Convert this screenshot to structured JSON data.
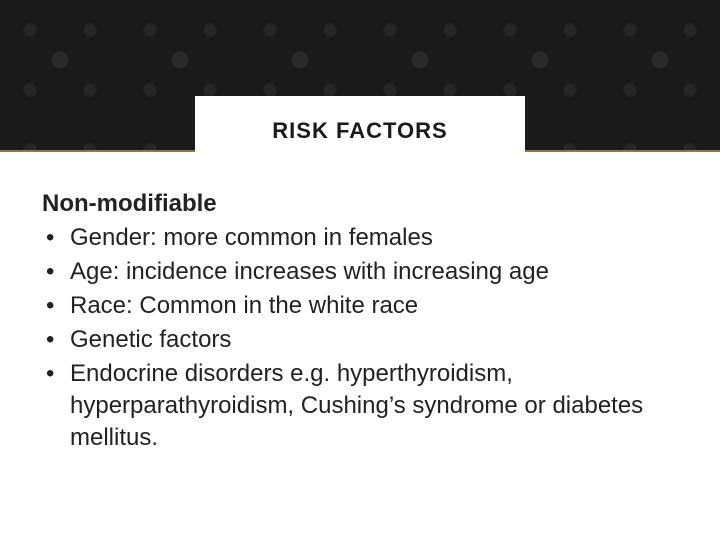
{
  "colors": {
    "header_bg": "#1a1a1a",
    "gold_line": "#8a7a4a",
    "title_text": "#1a1a1a",
    "body_text": "#222222",
    "page_bg": "#ffffff"
  },
  "typography": {
    "title_fontsize": 22,
    "subheading_fontsize": 24,
    "body_fontsize": 24,
    "body_lineheight": 32
  },
  "title": "RISK FACTORS",
  "subheading": "Non-modifiable",
  "bullets": [
    "Gender: more common in females",
    "Age: incidence increases with increasing age",
    "Race: Common in the white race",
    "Genetic  factors",
    "Endocrine disorders e.g. hyperthyroidism, hyperparathyroidism, Cushing’s syndrome or diabetes mellitus."
  ]
}
